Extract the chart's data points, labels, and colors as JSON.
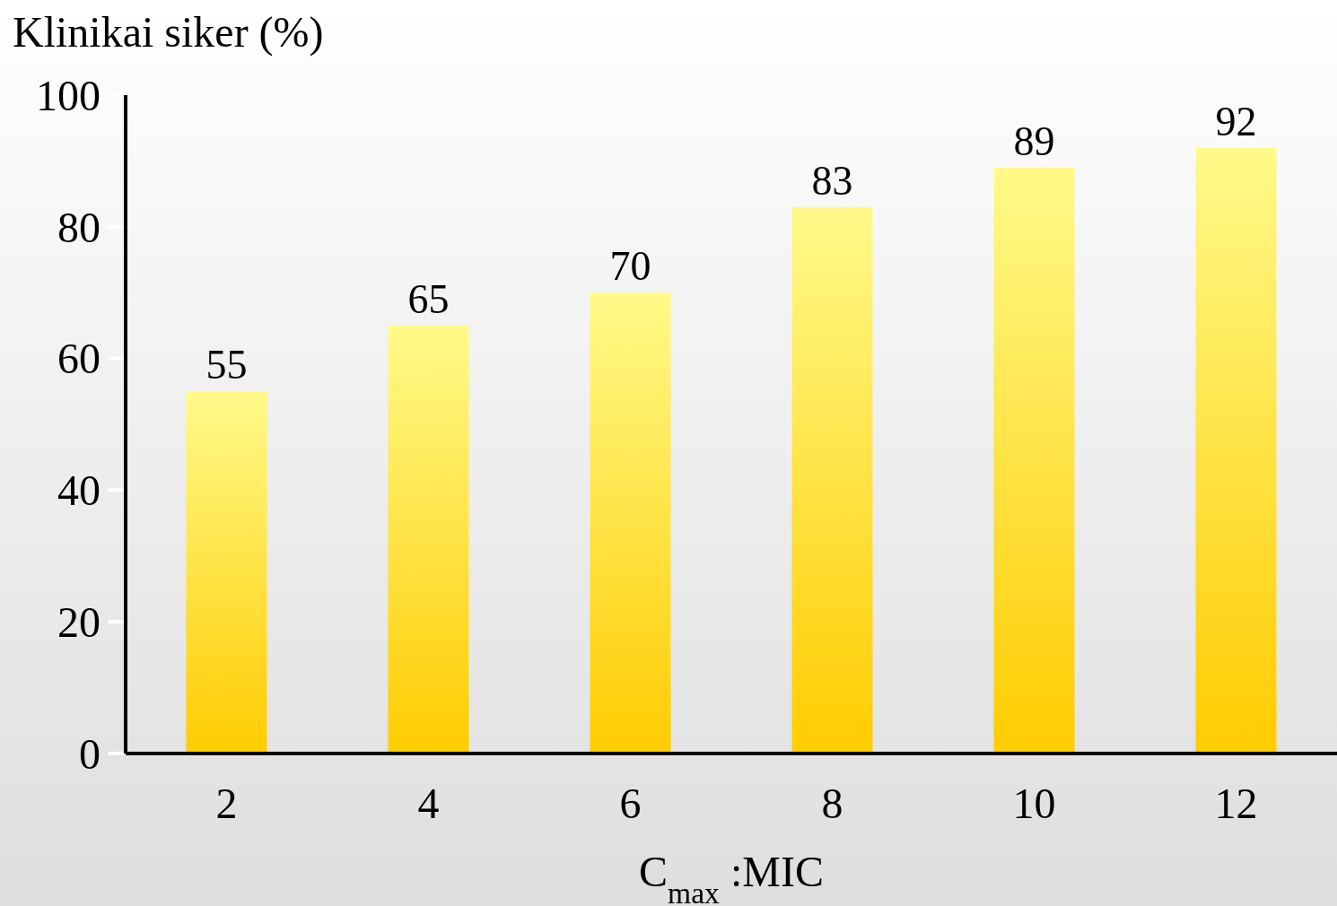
{
  "chart_data": {
    "type": "bar",
    "ylabel": "Klinikai siker (%)",
    "xlabel": "C$_{max}$ :MIC",
    "categories": [
      "2",
      "4",
      "6",
      "8",
      "10",
      "12"
    ],
    "values": [
      55,
      65,
      70,
      83,
      89,
      92
    ],
    "color": "#ffcc00",
    "ylim": [
      0,
      100
    ],
    "yticks": [
      0,
      20,
      40,
      60,
      80,
      100
    ],
    "data_labels": true,
    "grid": false
  }
}
